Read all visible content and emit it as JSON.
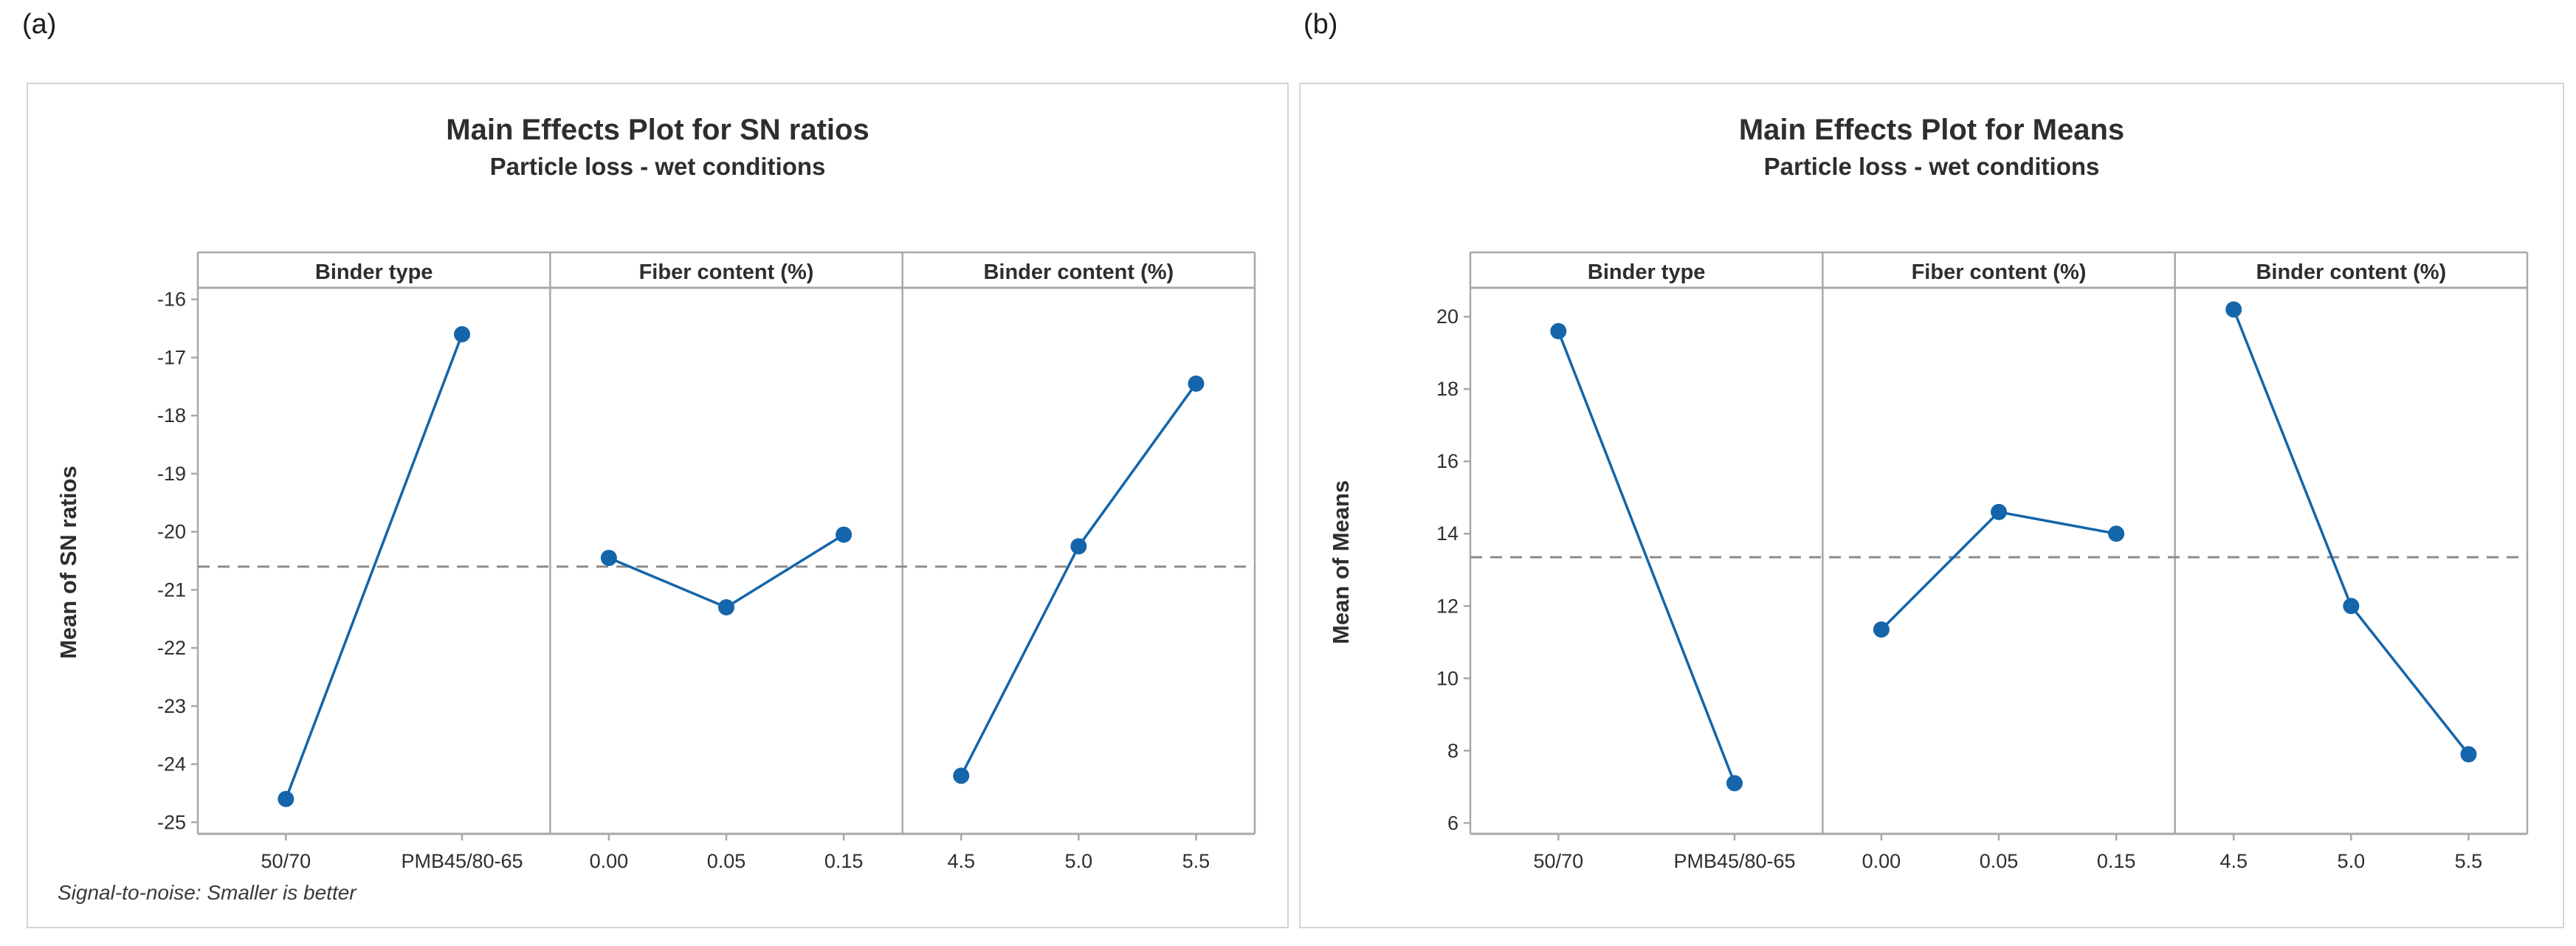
{
  "figure": {
    "label_a": "(a)",
    "label_b": "(b)"
  },
  "colors": {
    "series_blue": "#1465a9",
    "axis_gray": "#a8a8a8",
    "dashed_gray": "#8c8c8c",
    "text_dark": "#2e2e2e",
    "card_border": "#d4d4d4"
  },
  "chart_data": [
    {
      "type": "line",
      "title": "Main Effects Plot for SN ratios",
      "subtitle": "Particle loss - wet conditions",
      "ylabel": "Mean of SN ratios",
      "footnote": "Signal-to-noise: Smaller is better",
      "legend": "none",
      "grid": "off",
      "marker": "filled-circle",
      "y_ticks": [
        -16,
        -17,
        -18,
        -19,
        -20,
        -21,
        -22,
        -23,
        -24,
        -25
      ],
      "ylim": [
        -25.2,
        -15.8
      ],
      "reference_line_mean": -20.6,
      "panels": [
        {
          "label": "Binder type",
          "categories": [
            "50/70",
            "PMB45/80-65"
          ],
          "values": [
            -24.6,
            -16.6
          ]
        },
        {
          "label": "Fiber content (%)",
          "categories": [
            "0.00",
            "0.05",
            "0.15"
          ],
          "values": [
            -20.45,
            -21.3,
            -20.05
          ]
        },
        {
          "label": "Binder content (%)",
          "categories": [
            "4.5",
            "5.0",
            "5.5"
          ],
          "values": [
            -24.2,
            -20.25,
            -17.45
          ]
        }
      ]
    },
    {
      "type": "line",
      "title": "Main Effects Plot for Means",
      "subtitle": "Particle loss - wet conditions",
      "ylabel": "Mean of Means",
      "legend": "none",
      "grid": "off",
      "marker": "filled-circle",
      "y_ticks": [
        20,
        18,
        16,
        14,
        12,
        10,
        8,
        6
      ],
      "ylim": [
        5.7,
        20.8
      ],
      "reference_line_mean": 13.35,
      "panels": [
        {
          "label": "Binder type",
          "categories": [
            "50/70",
            "PMB45/80-65"
          ],
          "values": [
            19.6,
            7.1
          ]
        },
        {
          "label": "Fiber content (%)",
          "categories": [
            "0.00",
            "0.05",
            "0.15"
          ],
          "values": [
            11.35,
            14.6,
            14.0
          ]
        },
        {
          "label": "Binder content (%)",
          "categories": [
            "4.5",
            "5.0",
            "5.5"
          ],
          "values": [
            20.2,
            12.0,
            7.9
          ]
        }
      ]
    }
  ]
}
